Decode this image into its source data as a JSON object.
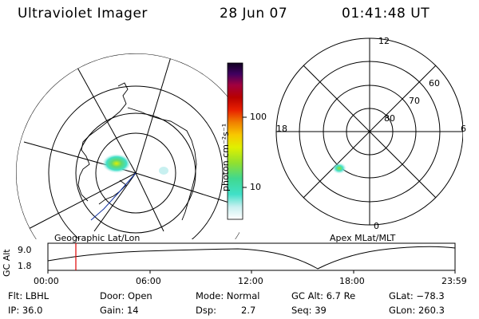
{
  "header": {
    "instrument": "Ultraviolet Imager",
    "date": "28 Jun 07",
    "time": "01:41:48 UT"
  },
  "colorbar": {
    "unit_label": "photon cm⁻²s⁻¹",
    "ticks": [
      "100",
      "10"
    ],
    "scale": "log",
    "colors": [
      "#ffffff",
      "#c8f0f0",
      "#40e0c8",
      "#40d890",
      "#90e030",
      "#e0f000",
      "#f8c800",
      "#f08000",
      "#e82000",
      "#b80000",
      "#a00040",
      "#400060",
      "#100020"
    ]
  },
  "geo_plot": {
    "label": "Geographic Lat/Lon"
  },
  "apex_plot": {
    "label": "Apex MLat/MLT",
    "mlt_labels": {
      "top": "12",
      "left": "18",
      "right": "6",
      "bottom": "0"
    },
    "mlat_labels": [
      "80",
      "70",
      "60"
    ]
  },
  "altitude_panel": {
    "axis_label": "GC Alt",
    "y_ticks": [
      "9.0",
      "1.8"
    ],
    "x_ticks": [
      "00:00",
      "06:00",
      "12:00",
      "18:00",
      "23:59"
    ]
  },
  "status": {
    "flt": "Flt: LBHL",
    "ip": "IP: 36.0",
    "door": "Door: Open",
    "gain": "Gain: 14",
    "mode": "Mode: Normal",
    "dsp_label": "Dsp:",
    "dsp_value": "2.7",
    "gc_alt": "GC Alt: 6.7 Re",
    "seq": "Seq: 39",
    "glat": "GLat: −78.3",
    "glon": "GLon: 260.3"
  }
}
